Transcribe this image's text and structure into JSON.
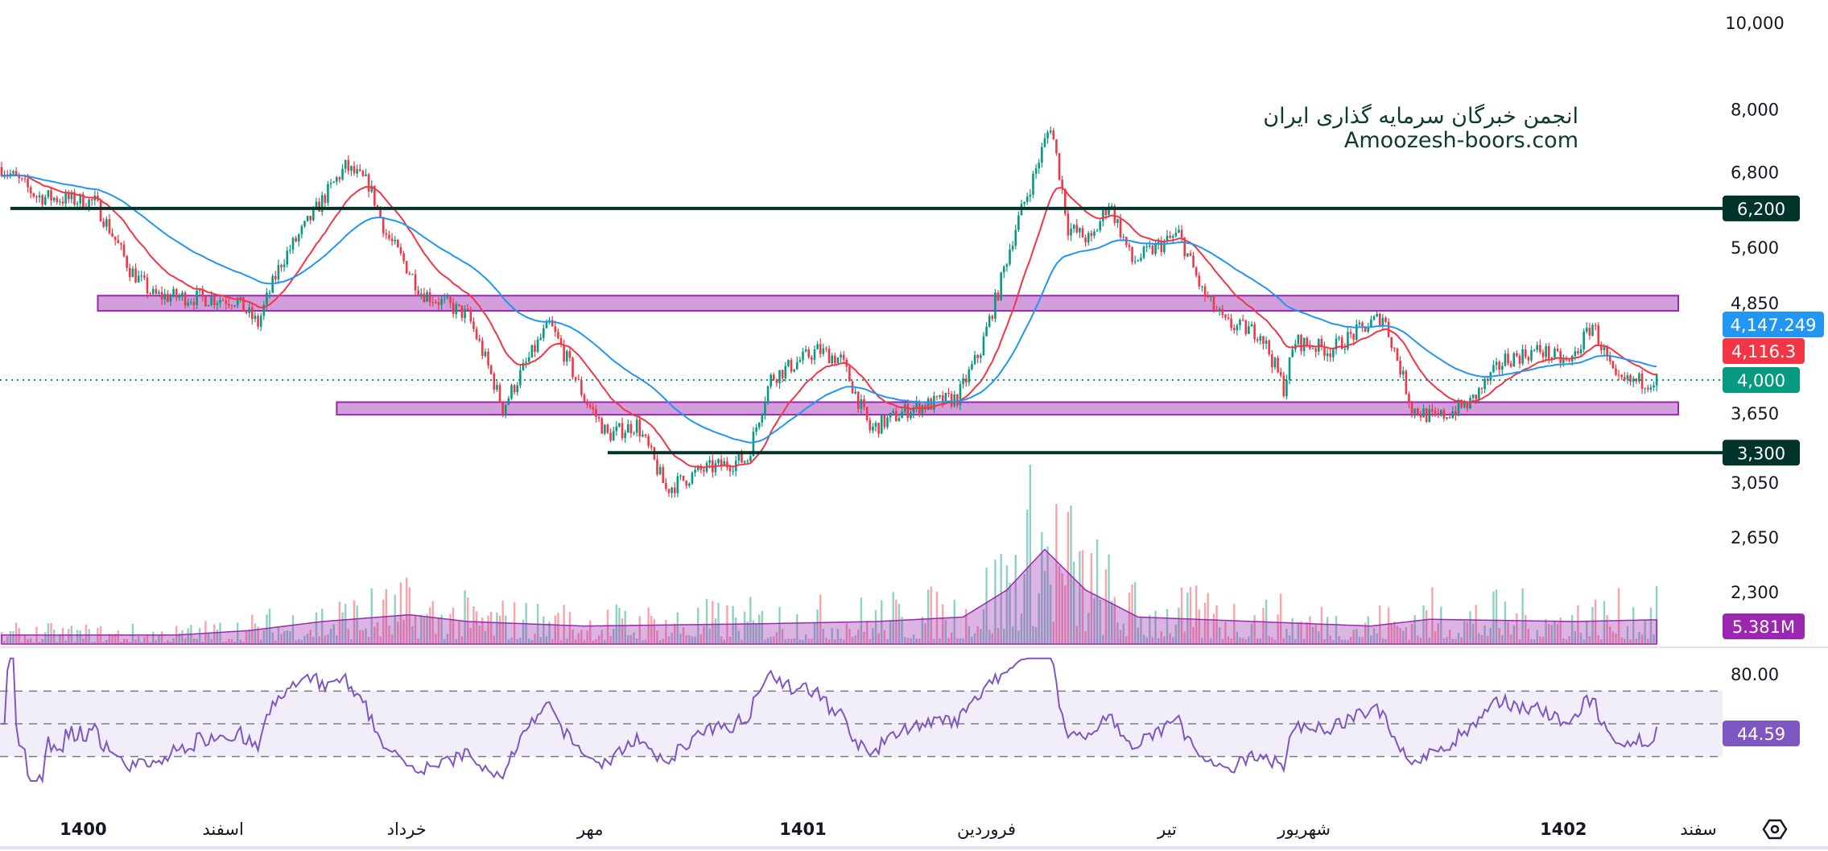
{
  "watermark": {
    "line1": "انجمن خبرگان سرمایه گذاری ایران",
    "line2": "Amoozesh-boors.com"
  },
  "colors": {
    "up": "#089981",
    "down": "#f23645",
    "ema_fast": "#f23645",
    "ema_slow": "#2196f3",
    "zone": "#9c27b0",
    "level": "#00332a",
    "rsi": "#7e57c2"
  },
  "chart_data": [
    {
      "type": "candlestick",
      "scale": "log",
      "y_ticks": [
        "10,000",
        "8,000",
        "6,800",
        "5,600",
        "4,850",
        "3,650",
        "3,050",
        "2,650",
        "2,300"
      ],
      "y_tick_values": [
        10000,
        8000,
        6800,
        5600,
        4850,
        3650,
        3050,
        2650,
        2300
      ],
      "x_ticks": [
        {
          "day": 28,
          "label": "1400"
        },
        {
          "day": 76,
          "label": "اسفند"
        },
        {
          "day": 139,
          "label": "خرداد"
        },
        {
          "day": 202,
          "label": "مهر"
        },
        {
          "day": 275,
          "label": "1401"
        },
        {
          "day": 338,
          "label": "فروردین"
        },
        {
          "day": 400,
          "label": "تیر"
        },
        {
          "day": 447,
          "label": "شهریور"
        },
        {
          "day": 536,
          "label": "1402"
        }
      ],
      "x_axis_edge_label": "سفند",
      "close_path": [
        [
          0,
          6900
        ],
        [
          12,
          6400
        ],
        [
          32,
          6300
        ],
        [
          44,
          5300
        ],
        [
          52,
          4950
        ],
        [
          80,
          4900
        ],
        [
          88,
          4600
        ],
        [
          96,
          5400
        ],
        [
          104,
          5900
        ],
        [
          118,
          6900
        ],
        [
          126,
          6600
        ],
        [
          132,
          5800
        ],
        [
          144,
          5000
        ],
        [
          160,
          4700
        ],
        [
          172,
          3700
        ],
        [
          188,
          4600
        ],
        [
          200,
          3800
        ],
        [
          208,
          3450
        ],
        [
          218,
          3550
        ],
        [
          228,
          3000
        ],
        [
          240,
          3150
        ],
        [
          256,
          3250
        ],
        [
          264,
          4000
        ],
        [
          280,
          4300
        ],
        [
          288,
          4200
        ],
        [
          298,
          3500
        ],
        [
          312,
          3700
        ],
        [
          328,
          3800
        ],
        [
          336,
          4300
        ],
        [
          342,
          5000
        ],
        [
          348,
          5900
        ],
        [
          354,
          6700
        ],
        [
          360,
          7700
        ],
        [
          366,
          5900
        ],
        [
          374,
          5700
        ],
        [
          380,
          6300
        ],
        [
          388,
          5400
        ],
        [
          404,
          5800
        ],
        [
          412,
          5000
        ],
        [
          420,
          4600
        ],
        [
          432,
          4500
        ],
        [
          440,
          3900
        ],
        [
          444,
          4400
        ],
        [
          456,
          4300
        ],
        [
          474,
          4700
        ],
        [
          484,
          3700
        ],
        [
          492,
          3600
        ],
        [
          504,
          3750
        ],
        [
          516,
          4200
        ],
        [
          528,
          4300
        ],
        [
          538,
          4150
        ],
        [
          546,
          4600
        ],
        [
          554,
          3950
        ],
        [
          568,
          3980
        ]
      ],
      "last_price": "4,000",
      "ema_fast_value": "4,116.3",
      "ema_slow_value": "4,147.249",
      "levels": [
        {
          "price": 6200,
          "label": "6,200",
          "from_day": 3
        },
        {
          "price": 3300,
          "label": "3,300",
          "from_day": 208
        }
      ],
      "zones": [
        {
          "top": 4950,
          "bottom": 4760,
          "from_day": 33
        },
        {
          "top": 3760,
          "bottom": 3640,
          "from_day": 115
        }
      ]
    },
    {
      "type": "bar",
      "name": "volume",
      "unit": "M",
      "volume_ma_path": [
        [
          0,
          2
        ],
        [
          60,
          2
        ],
        [
          85,
          3
        ],
        [
          110,
          5
        ],
        [
          140,
          6.5
        ],
        [
          160,
          5
        ],
        [
          200,
          4
        ],
        [
          260,
          4.5
        ],
        [
          300,
          5
        ],
        [
          330,
          6
        ],
        [
          345,
          12
        ],
        [
          358,
          21
        ],
        [
          372,
          12
        ],
        [
          390,
          6
        ],
        [
          450,
          4.5
        ],
        [
          470,
          4
        ],
        [
          490,
          5.5
        ],
        [
          540,
          5
        ],
        [
          568,
          5.4
        ]
      ],
      "last_label": "5.381M"
    },
    {
      "type": "line",
      "name": "RSI",
      "bands": [
        30,
        50,
        70
      ],
      "y_tick": "80.00",
      "last_value": "44.59"
    }
  ]
}
